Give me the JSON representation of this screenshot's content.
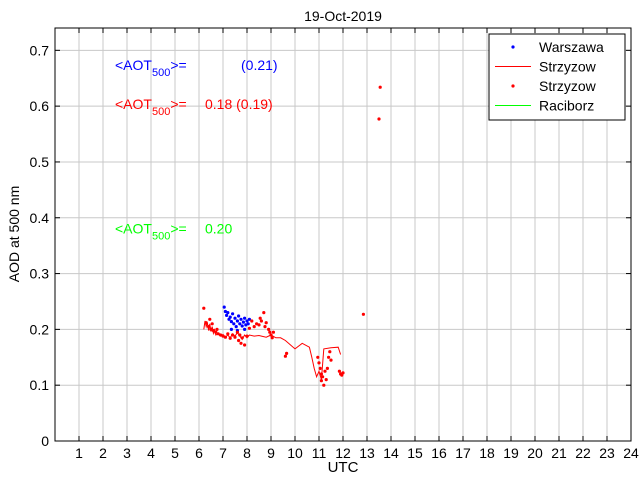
{
  "chart_data": {
    "type": "scatter",
    "title": "19-Oct-2019",
    "xlabel": "UTC",
    "ylabel": "AOD at 500 nm",
    "xlim": [
      0,
      24
    ],
    "ylim": [
      0,
      0.74
    ],
    "xticks": [
      1,
      2,
      3,
      4,
      5,
      6,
      7,
      8,
      9,
      10,
      11,
      12,
      13,
      14,
      15,
      16,
      17,
      18,
      19,
      20,
      21,
      22,
      23,
      24
    ],
    "yticks": [
      0,
      0.1,
      0.2,
      0.3,
      0.4,
      0.5,
      0.6,
      0.7
    ],
    "ytick_labels": [
      "0",
      "0.1",
      "0.2",
      "0.3",
      "0.4",
      "0.5",
      "0.6",
      "0.7"
    ],
    "grid": true,
    "legend_position": "top-right",
    "legend": [
      {
        "label": "Warszawa",
        "style": "dot",
        "color": "#0000ff"
      },
      {
        "label": "Strzyzow",
        "style": "line",
        "color": "#ff0000"
      },
      {
        "label": "Strzyzow",
        "style": "dot",
        "color": "#ff0000"
      },
      {
        "label": "Raciborz",
        "style": "line",
        "color": "#00ff00"
      }
    ],
    "annotations": [
      {
        "prefix": "<AOT",
        "sub": "500",
        "suffix": ">=",
        "value": "(0.21)",
        "color": "#0000ff",
        "at": [
          2.5,
          0.665
        ]
      },
      {
        "prefix": "<AOT",
        "sub": "500",
        "suffix": ">=",
        "value": "0.18 (0.19)",
        "color": "#ff0000",
        "at": [
          2.5,
          0.595
        ]
      },
      {
        "prefix": "<AOT",
        "sub": "500",
        "suffix": ">=",
        "value": "0.20",
        "color": "#00ff00",
        "at": [
          2.5,
          0.372
        ]
      }
    ],
    "series": [
      {
        "name": "Warszawa",
        "kind": "points",
        "color": "#0000ff",
        "points": [
          [
            7.05,
            0.24
          ],
          [
            7.1,
            0.232
          ],
          [
            7.15,
            0.225
          ],
          [
            7.2,
            0.23
          ],
          [
            7.25,
            0.218
          ],
          [
            7.3,
            0.222
          ],
          [
            7.35,
            0.214
          ],
          [
            7.4,
            0.228
          ],
          [
            7.45,
            0.21
          ],
          [
            7.5,
            0.22
          ],
          [
            7.55,
            0.205
          ],
          [
            7.6,
            0.215
          ],
          [
            7.65,
            0.224
          ],
          [
            7.7,
            0.21
          ],
          [
            7.75,
            0.218
          ],
          [
            7.8,
            0.206
          ],
          [
            7.85,
            0.213
          ],
          [
            7.9,
            0.22
          ],
          [
            7.95,
            0.208
          ],
          [
            8.0,
            0.215
          ],
          [
            8.05,
            0.21
          ],
          [
            8.1,
            0.218
          ],
          [
            7.35,
            0.2
          ],
          [
            7.6,
            0.198
          ],
          [
            7.9,
            0.2
          ]
        ]
      },
      {
        "name": "Strzyzow",
        "kind": "line",
        "color": "#ff0000",
        "points": [
          [
            6.2,
            0.2
          ],
          [
            6.25,
            0.215
          ],
          [
            6.3,
            0.205
          ],
          [
            6.35,
            0.212
          ],
          [
            6.4,
            0.198
          ],
          [
            6.45,
            0.21
          ],
          [
            6.5,
            0.196
          ],
          [
            6.55,
            0.205
          ],
          [
            6.6,
            0.193
          ],
          [
            6.65,
            0.199
          ],
          [
            6.7,
            0.19
          ],
          [
            6.8,
            0.192
          ],
          [
            6.9,
            0.188
          ],
          [
            7.0,
            0.191
          ],
          [
            7.1,
            0.186
          ],
          [
            7.2,
            0.19
          ],
          [
            7.3,
            0.185
          ],
          [
            7.4,
            0.192
          ],
          [
            7.5,
            0.188
          ],
          [
            7.6,
            0.194
          ],
          [
            7.7,
            0.188
          ],
          [
            7.8,
            0.182
          ],
          [
            7.9,
            0.19
          ],
          [
            8.0,
            0.185
          ],
          [
            8.1,
            0.19
          ],
          [
            8.3,
            0.188
          ],
          [
            8.5,
            0.189
          ],
          [
            8.6,
            0.188
          ],
          [
            8.8,
            0.186
          ],
          [
            9.0,
            0.19
          ],
          [
            9.2,
            0.185
          ],
          [
            9.4,
            0.185
          ],
          [
            9.6,
            0.18
          ],
          [
            10.0,
            0.165
          ],
          [
            10.3,
            0.175
          ],
          [
            10.6,
            0.168
          ],
          [
            10.7,
            0.15
          ],
          [
            10.8,
            0.13
          ],
          [
            10.9,
            0.115
          ],
          [
            11.0,
            0.125
          ],
          [
            11.1,
            0.11
          ],
          [
            11.2,
            0.165
          ],
          [
            11.5,
            0.167
          ],
          [
            11.8,
            0.168
          ],
          [
            11.9,
            0.155
          ]
        ]
      },
      {
        "name": "Strzyzow",
        "kind": "points",
        "color": "#ff0000",
        "points": [
          [
            6.2,
            0.238
          ],
          [
            6.3,
            0.212
          ],
          [
            6.4,
            0.205
          ],
          [
            6.45,
            0.218
          ],
          [
            6.5,
            0.2
          ],
          [
            6.55,
            0.21
          ],
          [
            6.6,
            0.198
          ],
          [
            6.7,
            0.195
          ],
          [
            6.75,
            0.2
          ],
          [
            6.8,
            0.192
          ],
          [
            6.9,
            0.19
          ],
          [
            7.0,
            0.188
          ],
          [
            7.1,
            0.186
          ],
          [
            7.2,
            0.192
          ],
          [
            7.3,
            0.184
          ],
          [
            7.4,
            0.19
          ],
          [
            7.5,
            0.186
          ],
          [
            7.6,
            0.195
          ],
          [
            7.65,
            0.18
          ],
          [
            7.7,
            0.19
          ],
          [
            7.75,
            0.175
          ],
          [
            7.8,
            0.185
          ],
          [
            7.9,
            0.172
          ],
          [
            8.0,
            0.188
          ],
          [
            8.1,
            0.202
          ],
          [
            8.2,
            0.215
          ],
          [
            8.3,
            0.205
          ],
          [
            8.4,
            0.21
          ],
          [
            8.5,
            0.208
          ],
          [
            8.55,
            0.22
          ],
          [
            8.6,
            0.215
          ],
          [
            8.7,
            0.23
          ],
          [
            8.75,
            0.205
          ],
          [
            8.8,
            0.212
          ],
          [
            8.9,
            0.2
          ],
          [
            8.95,
            0.195
          ],
          [
            9.0,
            0.19
          ],
          [
            9.05,
            0.185
          ],
          [
            9.1,
            0.195
          ],
          [
            9.6,
            0.152
          ],
          [
            9.65,
            0.157
          ],
          [
            10.95,
            0.15
          ],
          [
            11.0,
            0.14
          ],
          [
            11.05,
            0.13
          ],
          [
            11.1,
            0.12
          ],
          [
            11.1,
            0.108
          ],
          [
            11.15,
            0.115
          ],
          [
            11.2,
            0.1
          ],
          [
            11.25,
            0.125
          ],
          [
            11.3,
            0.11
          ],
          [
            11.35,
            0.13
          ],
          [
            11.4,
            0.15
          ],
          [
            11.45,
            0.16
          ],
          [
            11.5,
            0.145
          ],
          [
            11.85,
            0.125
          ],
          [
            11.9,
            0.12
          ],
          [
            11.95,
            0.118
          ],
          [
            12.0,
            0.122
          ],
          [
            12.85,
            0.227
          ],
          [
            13.55,
            0.634
          ],
          [
            13.5,
            0.577
          ]
        ]
      },
      {
        "name": "Raciborz",
        "kind": "line",
        "color": "#00ff00",
        "points": []
      }
    ]
  }
}
